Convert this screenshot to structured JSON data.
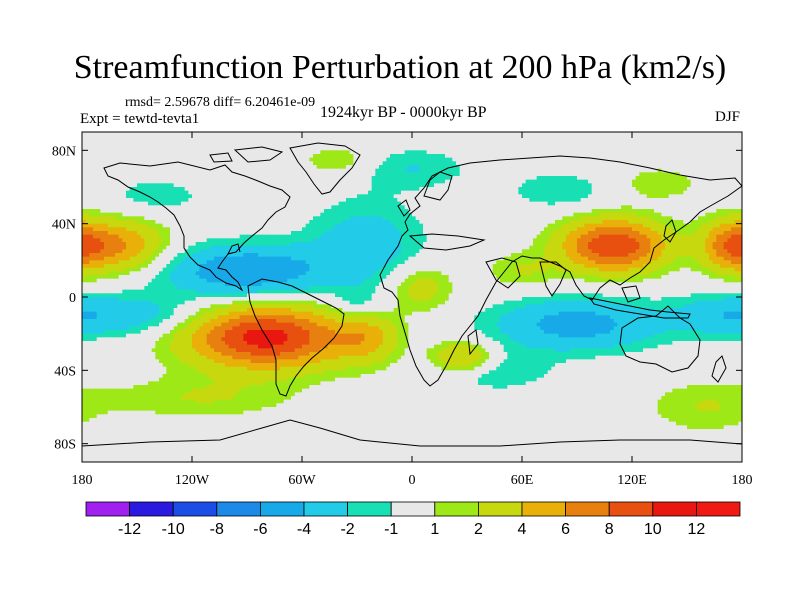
{
  "chart_data": {
    "type": "heatmap",
    "title": "Streamfunction Perturbation at 200 hPa (km2/s)",
    "stats_text": "rmsd= 2.59678 diff= 6.20461e-09",
    "left_label": "Expt = tewtd-tevta1",
    "center_label": "1924kyr BP - 0000kyr BP",
    "right_label": "DJF",
    "projection": "cylindrical equidistant",
    "xlim": [
      -180,
      180
    ],
    "ylim": [
      -90,
      90
    ],
    "x_ticks": [
      {
        "value": -180,
        "label": "180"
      },
      {
        "value": -120,
        "label": "120W"
      },
      {
        "value": -60,
        "label": "60W"
      },
      {
        "value": 0,
        "label": "0"
      },
      {
        "value": 60,
        "label": "60E"
      },
      {
        "value": 120,
        "label": "120E"
      },
      {
        "value": 180,
        "label": "180"
      }
    ],
    "y_ticks": [
      {
        "value": 80,
        "label": "80N"
      },
      {
        "value": 40,
        "label": "40N"
      },
      {
        "value": 0,
        "label": "0"
      },
      {
        "value": -40,
        "label": "40S"
      },
      {
        "value": -80,
        "label": "80S"
      }
    ],
    "colorbar": {
      "levels": [
        -12,
        -10,
        -8,
        -6,
        -4,
        -2,
        -1,
        1,
        2,
        4,
        6,
        8,
        10,
        12
      ],
      "labels": [
        "-12",
        "-10",
        "-8",
        "-6",
        "-4",
        "-2",
        "-1",
        "1",
        "2",
        "4",
        "6",
        "8",
        "10",
        "12"
      ],
      "colors": [
        "#a020f0",
        "#2a1ae0",
        "#1a4ee6",
        "#1e8ae8",
        "#18aae8",
        "#22cce8",
        "#18e0b4",
        "#e8e8e8",
        "#9ee818",
        "#c8d80e",
        "#e8b008",
        "#e88010",
        "#e85010",
        "#e81810",
        "#f01a14"
      ]
    },
    "field": {
      "unit": "km2/s",
      "centers": [
        {
          "lon": -80,
          "lat": -22,
          "value": 11,
          "sx": 30,
          "sy": 12
        },
        {
          "lon": -25,
          "lat": -22,
          "value": 4,
          "sx": 12,
          "sy": 10
        },
        {
          "lon": -160,
          "lat": 28,
          "value": 6,
          "sx": 18,
          "sy": 10
        },
        {
          "lon": 110,
          "lat": 28,
          "value": 10,
          "sx": 20,
          "sy": 10
        },
        {
          "lon": 175,
          "lat": 28,
          "value": 7,
          "sx": 12,
          "sy": 10
        },
        {
          "lon": 28,
          "lat": -33,
          "value": 5,
          "sx": 12,
          "sy": 6
        },
        {
          "lon": 5,
          "lat": 5,
          "value": 3,
          "sx": 12,
          "sy": 9
        },
        {
          "lon": 60,
          "lat": 14,
          "value": 2,
          "sx": 14,
          "sy": 7
        },
        {
          "lon": -115,
          "lat": -55,
          "value": 2,
          "sx": 35,
          "sy": 8
        },
        {
          "lon": 160,
          "lat": -60,
          "value": 2,
          "sx": 22,
          "sy": 10
        },
        {
          "lon": -40,
          "lat": 74,
          "value": 2,
          "sx": 14,
          "sy": 6
        },
        {
          "lon": 135,
          "lat": 62,
          "value": 2,
          "sx": 14,
          "sy": 6
        },
        {
          "lon": -90,
          "lat": 14,
          "value": -6,
          "sx": 32,
          "sy": 10
        },
        {
          "lon": -25,
          "lat": 30,
          "value": -3,
          "sx": 22,
          "sy": 16
        },
        {
          "lon": 90,
          "lat": -15,
          "value": -5,
          "sx": 32,
          "sy": 10
        },
        {
          "lon": -150,
          "lat": -10,
          "value": -3,
          "sx": 25,
          "sy": 8
        },
        {
          "lon": 170,
          "lat": -10,
          "value": -3,
          "sx": 20,
          "sy": 8
        },
        {
          "lon": 0,
          "lat": 70,
          "value": -2,
          "sx": 22,
          "sy": 8
        },
        {
          "lon": 80,
          "lat": 58,
          "value": -2,
          "sx": 18,
          "sy": 7
        },
        {
          "lon": -140,
          "lat": 55,
          "value": -1.5,
          "sx": 22,
          "sy": 8
        },
        {
          "lon": -30,
          "lat": -5,
          "value": -2,
          "sx": 10,
          "sy": 7
        },
        {
          "lon": 45,
          "lat": -40,
          "value": -2,
          "sx": 22,
          "sy": 8
        }
      ]
    }
  }
}
